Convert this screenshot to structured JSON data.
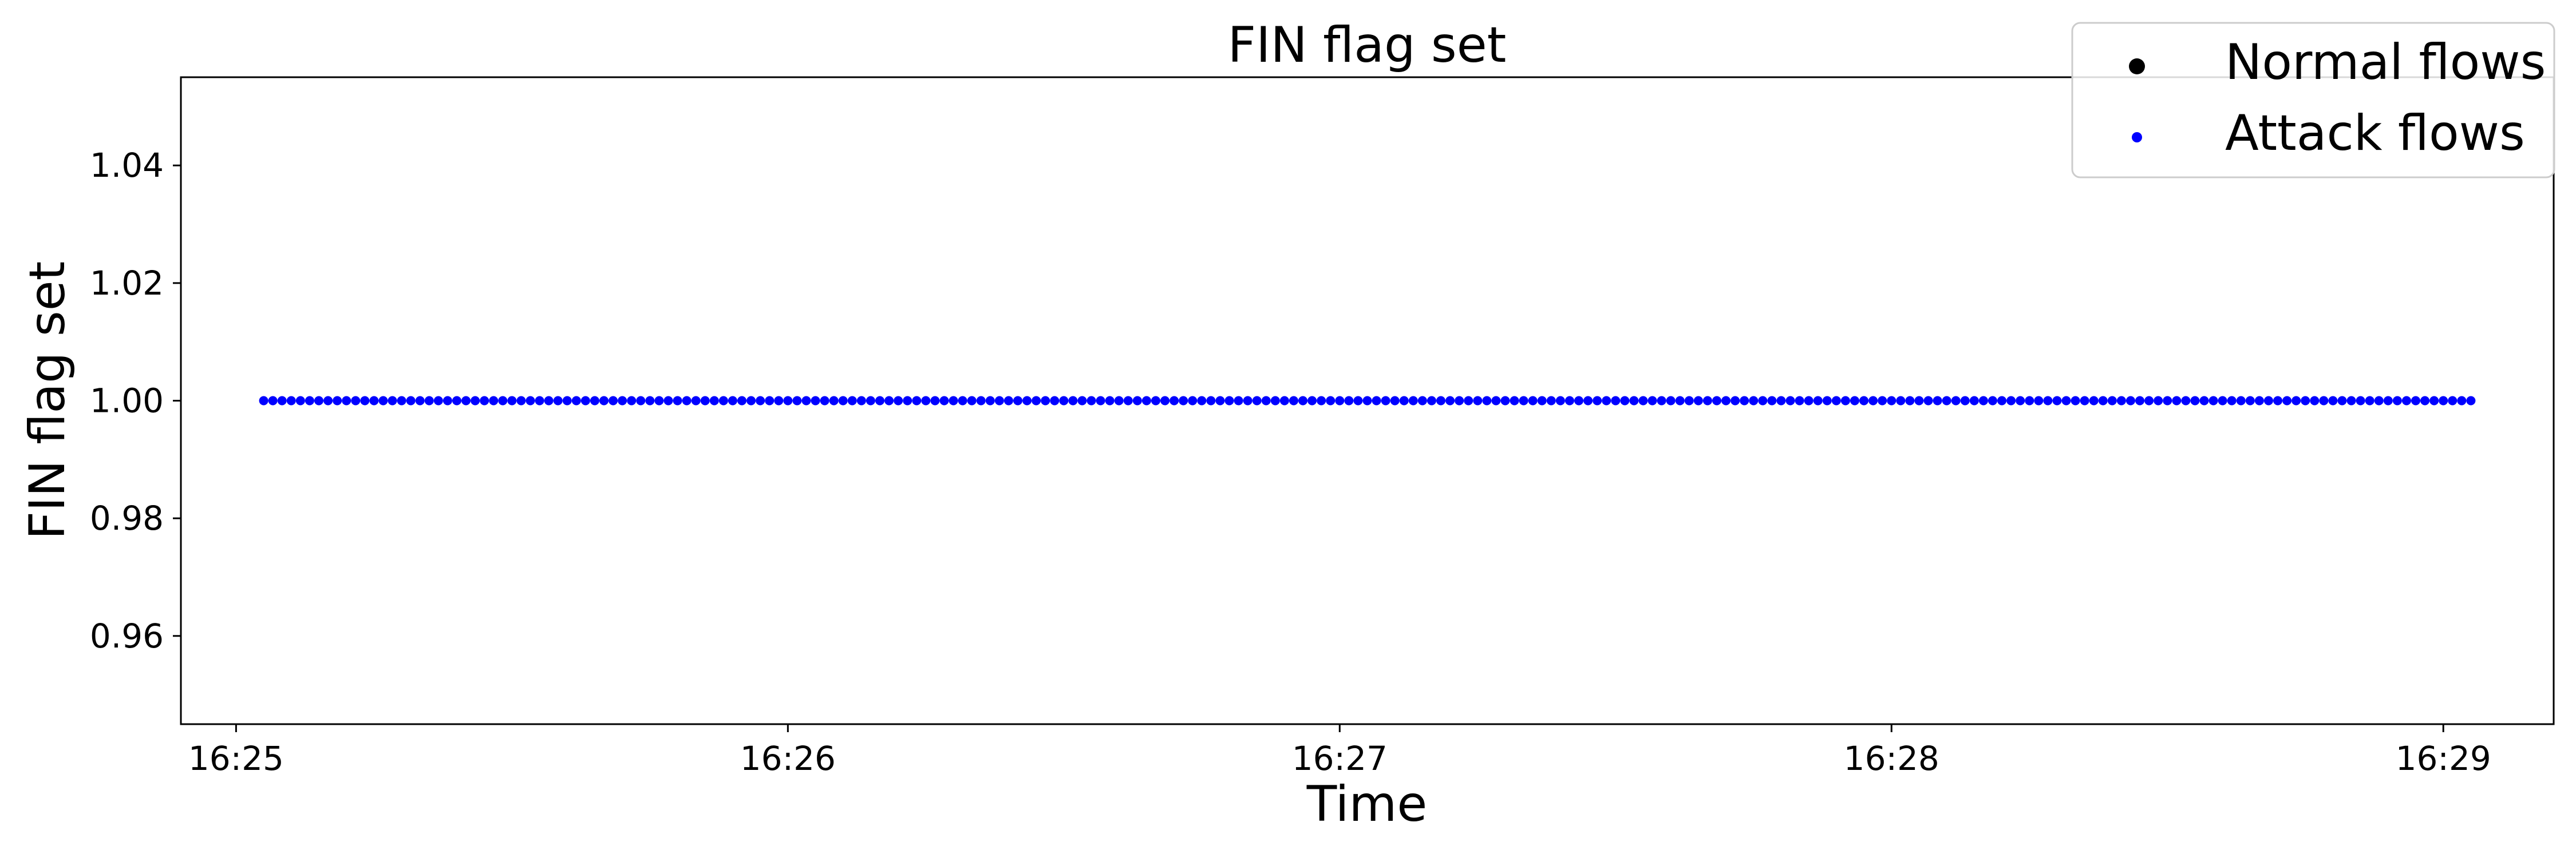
{
  "chart_data": {
    "type": "scatter",
    "title": "FIN flag set",
    "xlabel": "Time",
    "ylabel": "FIN flag set",
    "xlim": [
      "16:24:54",
      "16:29:12"
    ],
    "ylim": [
      0.945,
      1.055
    ],
    "x_ticks": [
      "16:25",
      "16:26",
      "16:27",
      "16:28",
      "16:29"
    ],
    "y_ticks": [
      "0.96",
      "0.98",
      "1.00",
      "1.02",
      "1.04"
    ],
    "grid": false,
    "legend_position": "top-right",
    "series": [
      {
        "name": "Normal flows",
        "color": "#000000",
        "marker": "circle",
        "points": []
      },
      {
        "name": "Attack flows",
        "color": "#0000ff",
        "marker": "circle",
        "x_start": "16:25:03",
        "x_end": "16:29:03",
        "x_step_seconds": 1,
        "y_value": 1.0
      }
    ]
  }
}
